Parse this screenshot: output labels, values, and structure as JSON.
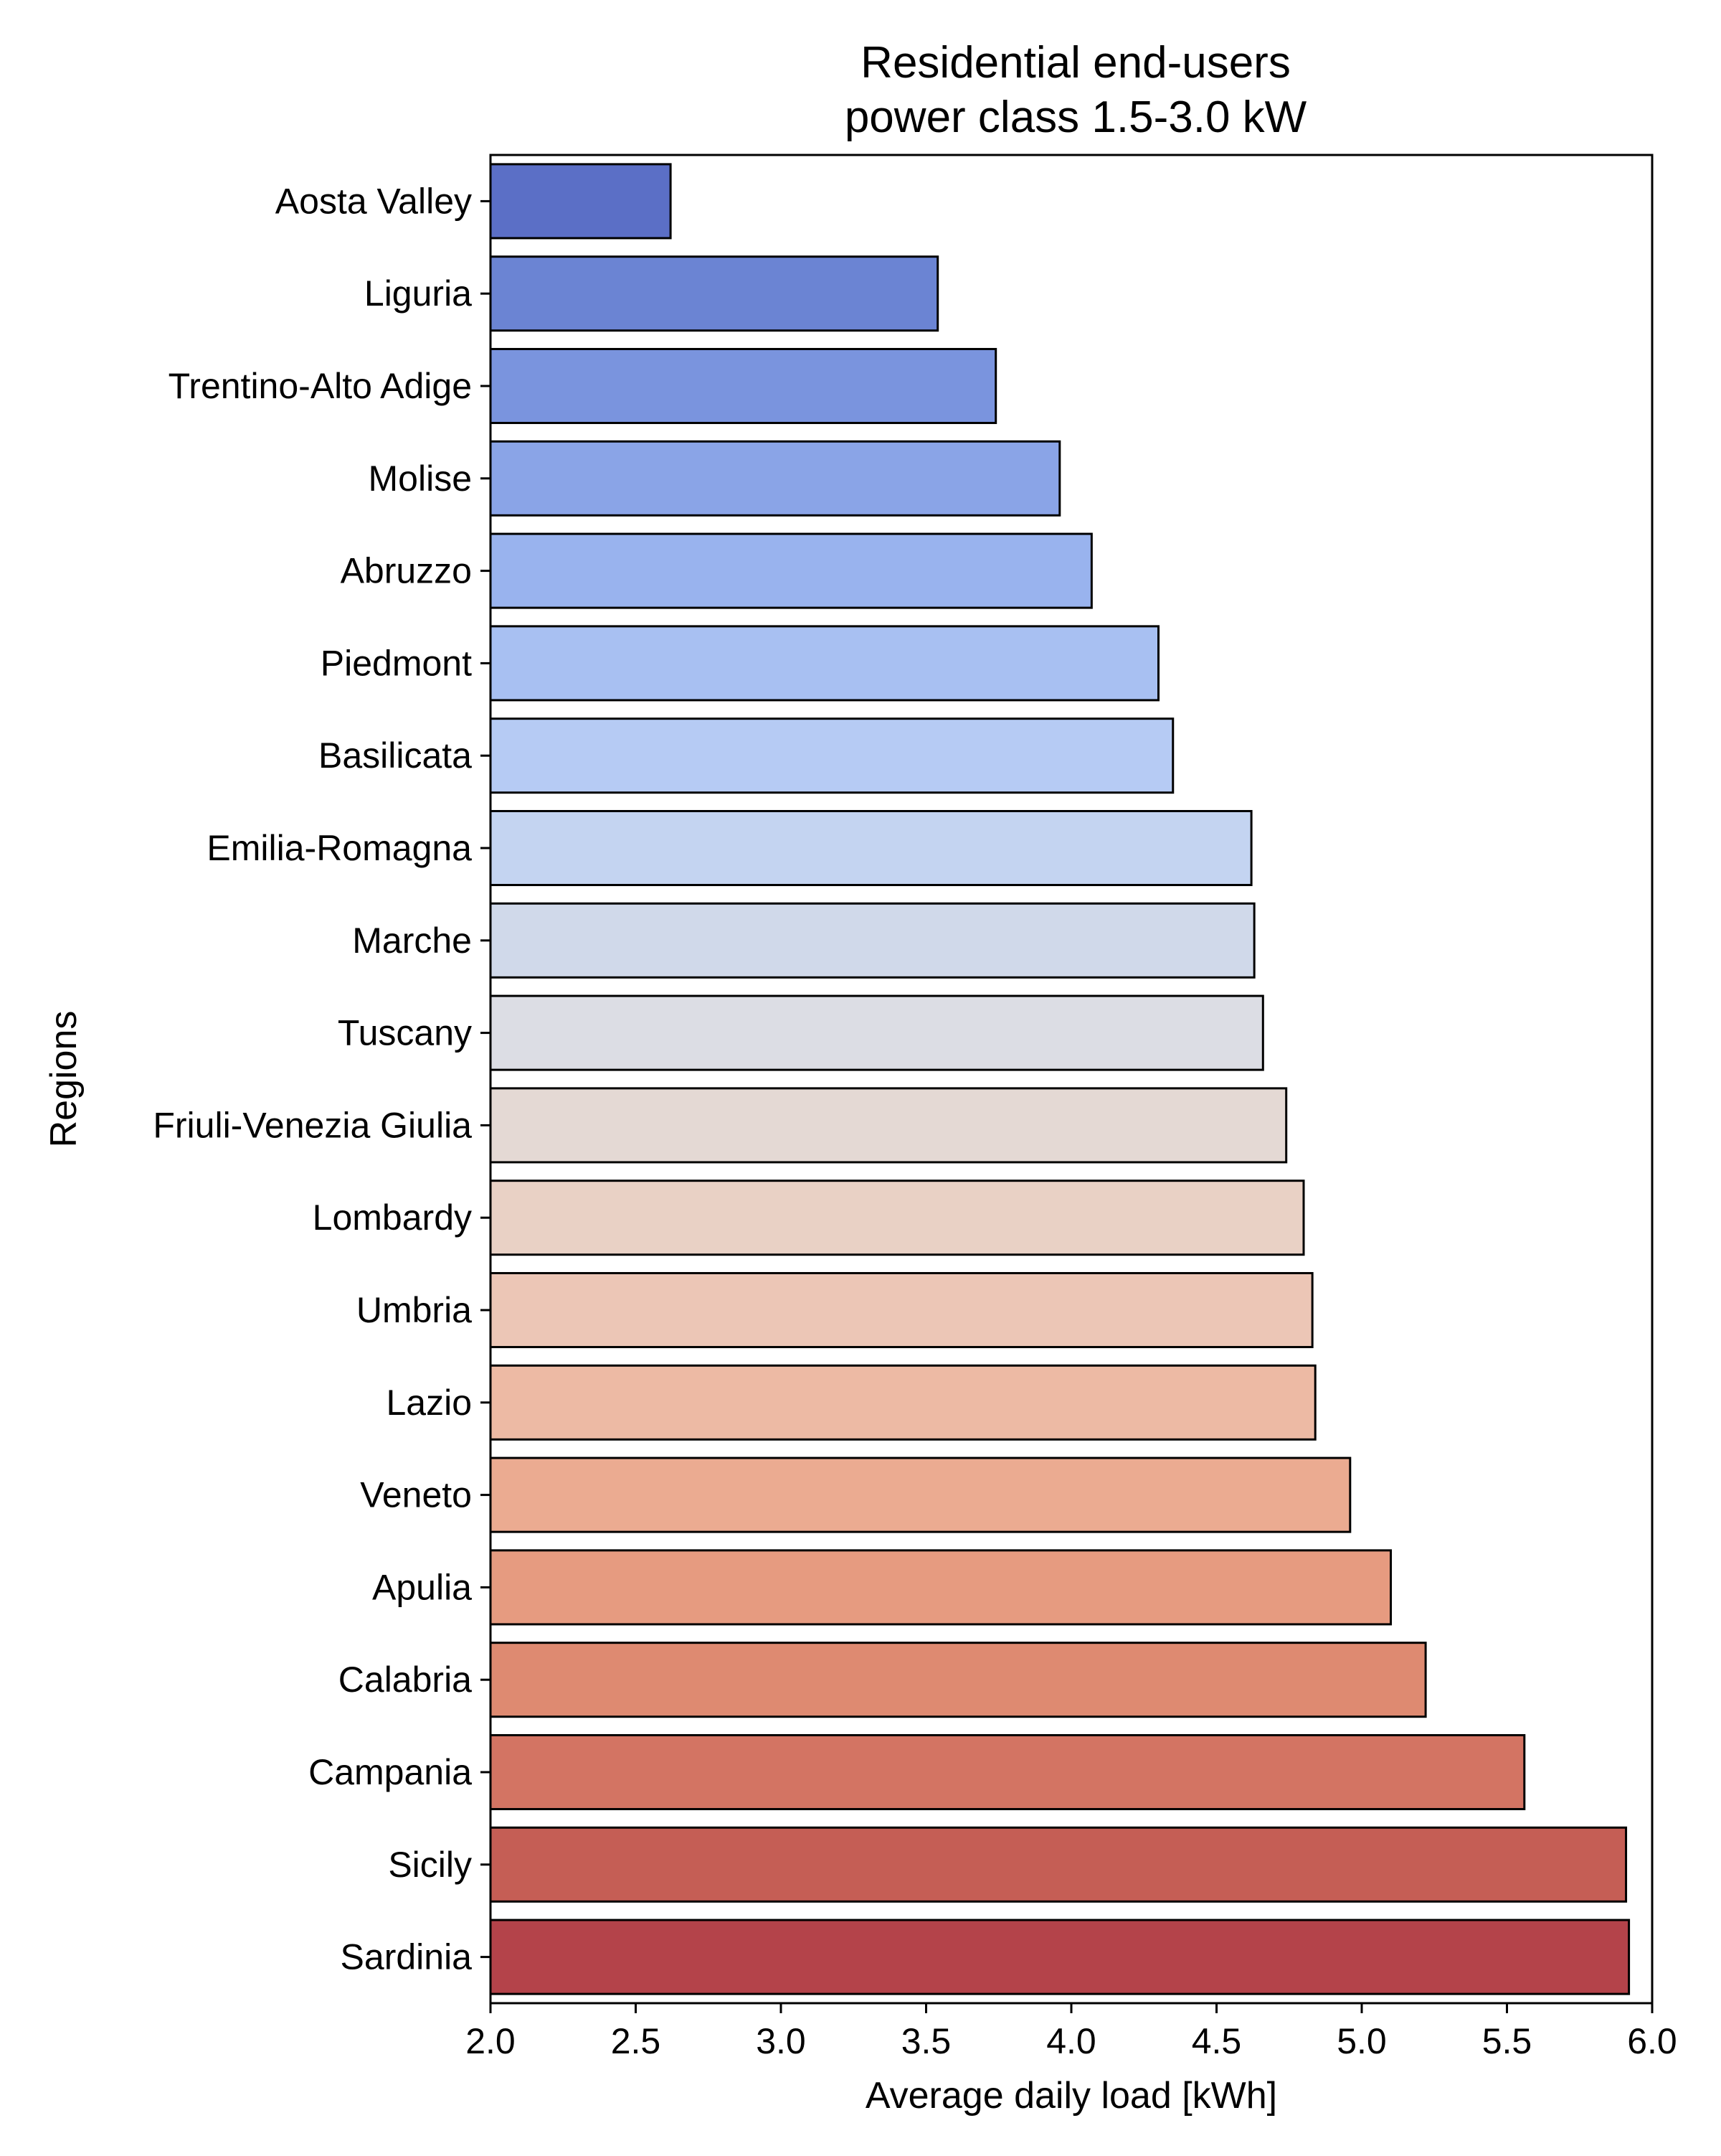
{
  "chart_data": {
    "type": "bar",
    "orientation": "horizontal",
    "title": [
      "Residential end-users",
      "power class 1.5-3.0 kW"
    ],
    "xlabel": "Average daily load [kWh]",
    "ylabel": "Regions",
    "xlim": [
      2.0,
      6.0
    ],
    "xticks": [
      "2.0",
      "2.5",
      "3.0",
      "3.5",
      "4.0",
      "4.5",
      "5.0",
      "5.5",
      "6.0"
    ],
    "grid": false,
    "legend": "none",
    "colormap": "coolwarm",
    "categories": [
      "Aosta Valley",
      "Liguria",
      "Trentino-Alto Adige",
      "Molise",
      "Abruzzo",
      "Piedmont",
      "Basilicata",
      "Emilia-Romagna",
      "Marche",
      "Tuscany",
      "Friuli-Venezia Giulia",
      "Lombardy",
      "Umbria",
      "Lazio",
      "Veneto",
      "Apulia",
      "Calabria",
      "Campania",
      "Sicily",
      "Sardinia"
    ],
    "values": [
      2.62,
      3.54,
      3.74,
      3.96,
      4.07,
      4.3,
      4.35,
      4.62,
      4.63,
      4.66,
      4.74,
      4.8,
      4.83,
      4.84,
      4.96,
      5.1,
      5.22,
      5.56,
      5.91,
      5.92
    ],
    "colors": [
      "#5b6fc6",
      "#6b84d3",
      "#7a94de",
      "#8aa4e7",
      "#99b3ee",
      "#a8c0f2",
      "#b6cbf4",
      "#c4d4f1",
      "#d0d9ea",
      "#dcdde4",
      "#e4d9d4",
      "#e9d1c5",
      "#ecc6b6",
      "#edbaa4",
      "#ebab91",
      "#e69b80",
      "#de8a71",
      "#d37463",
      "#c55e55",
      "#b4434a"
    ]
  }
}
